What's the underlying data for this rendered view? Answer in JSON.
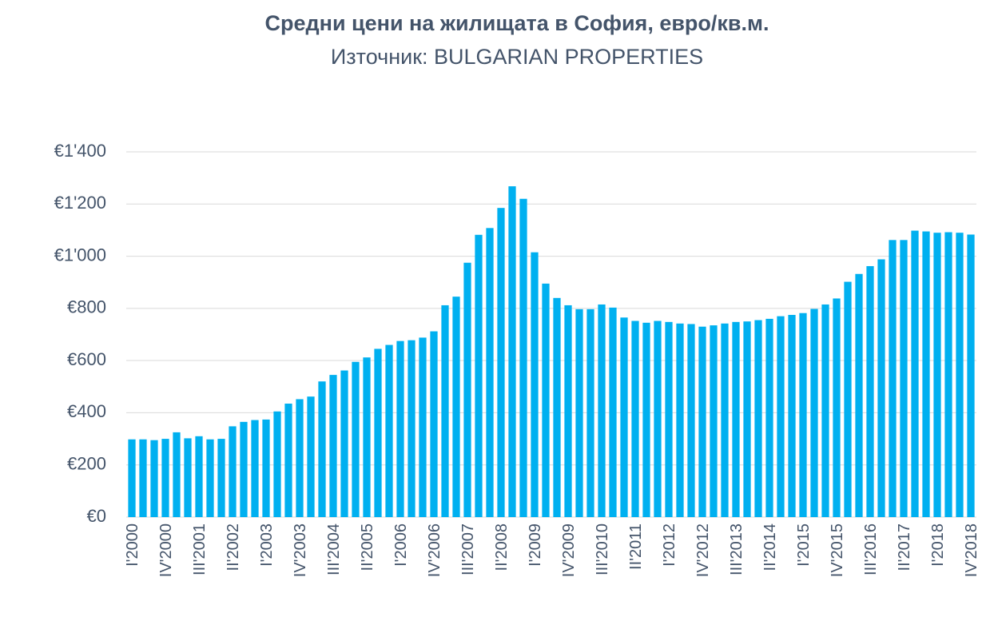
{
  "chart_data": {
    "type": "bar",
    "title": "Средни цени на жилищата в София, евро/кв.м.",
    "subtitle": "Източник: BULGARIAN PROPERTIES",
    "color": "#00b0f0",
    "grid": true,
    "categories": [
      "I'2000",
      null,
      null,
      "IV'2000",
      null,
      null,
      "III'2001",
      null,
      null,
      "II'2002",
      null,
      null,
      "I'2003",
      null,
      null,
      "IV'2003",
      null,
      null,
      "III'2004",
      null,
      null,
      "II'2005",
      null,
      null,
      "I'2006",
      null,
      null,
      "IV'2006",
      null,
      null,
      "III'2007",
      null,
      null,
      "II'2008",
      null,
      null,
      "I'2009",
      null,
      null,
      "IV'2009",
      null,
      null,
      "III'2010",
      null,
      null,
      "II'2011",
      null,
      null,
      "I'2012",
      null,
      null,
      "IV'2012",
      null,
      null,
      "III'2013",
      null,
      null,
      "II'2014",
      null,
      null,
      "I'2015",
      null,
      null,
      "IV'2015",
      null,
      null,
      "III'2016",
      null,
      null,
      "II'2017",
      null,
      null,
      "I'2018",
      null,
      null,
      "IV'2018"
    ],
    "values": [
      298,
      298,
      295,
      300,
      325,
      302,
      310,
      298,
      300,
      348,
      365,
      372,
      374,
      405,
      435,
      452,
      462,
      520,
      545,
      562,
      595,
      612,
      645,
      660,
      675,
      678,
      688,
      712,
      812,
      845,
      975,
      1082,
      1108,
      1185,
      1268,
      1220,
      1015,
      895,
      840,
      812,
      797,
      797,
      815,
      803,
      765,
      752,
      745,
      752,
      748,
      742,
      740,
      730,
      735,
      742,
      748,
      750,
      755,
      760,
      770,
      775,
      782,
      798,
      815,
      838,
      902,
      932,
      962,
      988,
      1062,
      1062,
      1098,
      1095,
      1090,
      1092,
      1090,
      1083
    ],
    "ylim": [
      0,
      1400
    ],
    "yticks": [
      {
        "value": 0,
        "label": "€0"
      },
      {
        "value": 200,
        "label": "€200"
      },
      {
        "value": 400,
        "label": "€400"
      },
      {
        "value": 600,
        "label": "€600"
      },
      {
        "value": 800,
        "label": "€800"
      },
      {
        "value": 1000,
        "label": "€1'000"
      },
      {
        "value": 1200,
        "label": "€1'200"
      },
      {
        "value": 1400,
        "label": "€1'400"
      }
    ]
  }
}
